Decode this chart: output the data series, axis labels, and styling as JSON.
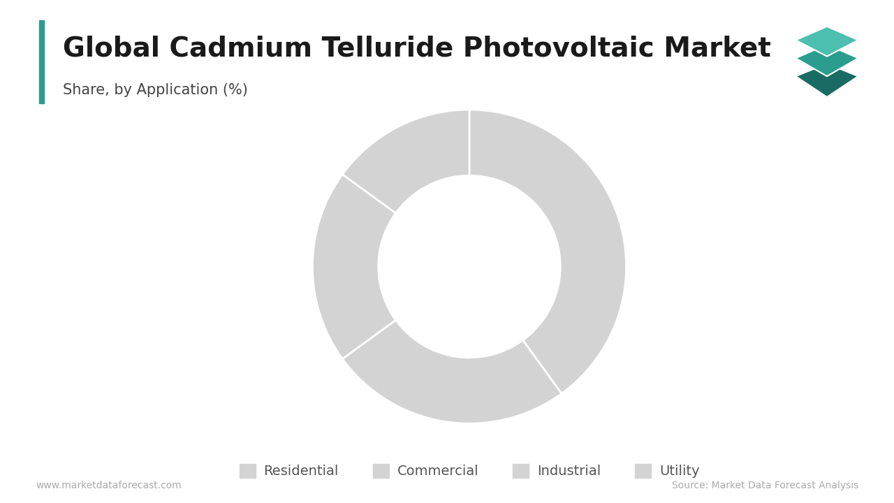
{
  "title": "Global Cadmium Telluride Photovoltaic Market",
  "subtitle": "Share, by Application (%)",
  "categories": [
    "Residential",
    "Commercial",
    "Industrial",
    "Utility"
  ],
  "values": [
    40,
    25,
    20,
    15
  ],
  "wedge_color": "#d3d3d3",
  "background_color": "#ffffff",
  "title_color": "#1a1a1a",
  "subtitle_color": "#444444",
  "legend_color": "#555555",
  "footer_left": "www.marketdataforecast.com",
  "footer_right": "Source: Market Data Forecast Analysis",
  "accent_color": "#2a9d8f",
  "title_fontsize": 28,
  "subtitle_fontsize": 15,
  "legend_fontsize": 14,
  "footer_fontsize": 10,
  "start_angle": 90
}
